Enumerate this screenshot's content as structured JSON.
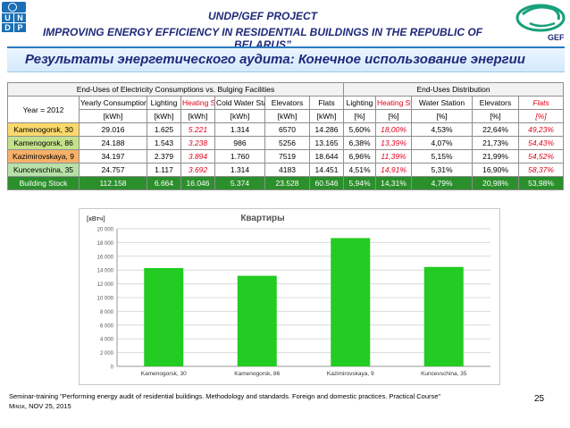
{
  "header": {
    "line1": "UNDP/GEF PROJECT",
    "line2": "IMPROVING ENERGY EFFICIENCY IN RESIDENTIAL BUILDINGS IN THE REPUBLIC OF BELARUS”",
    "subtitle": "Результаты энергетического аудита: Конечное использование энергии",
    "undp_letters": [
      "U",
      "N",
      "D",
      "P"
    ],
    "gef_label": "GEF"
  },
  "table": {
    "group_left": "End-Uses of Electricity Consumptions vs. Bulging Facilities",
    "group_right": "End-Uses Distribution",
    "year_label": "Year = 2012",
    "columns": [
      "Yearly Consumptions",
      "Lighting",
      "Heating System",
      "Cold Water Station",
      "Elevators",
      "Flats",
      "Lighting",
      "Heating System",
      "Water Station",
      "Elevators",
      "Flats"
    ],
    "units": [
      "[kWh]",
      "[kWh]",
      "[kWh]",
      "[kWh]",
      "[kWh]",
      "[kWh]",
      "[%]",
      "[%]",
      "[%]",
      "[%]",
      "[%]"
    ],
    "rows": [
      {
        "name": "Kamenogorsk, 30",
        "cells": [
          "29.016",
          "1.625",
          "5.221",
          "1.314",
          "6570",
          "14.286",
          "5,60%",
          "18,00%",
          "4,53%",
          "22,64%",
          "49,23%"
        ]
      },
      {
        "name": "Kamenogorsk, 86",
        "cells": [
          "24.188",
          "1.543",
          "3.238",
          "986",
          "5256",
          "13.165",
          "6,38%",
          "13,39%",
          "4,07%",
          "21,73%",
          "54,43%"
        ]
      },
      {
        "name": "Kazimirovskaya, 9",
        "cells": [
          "34.197",
          "2.379",
          "3.894",
          "1.760",
          "7519",
          "18.644",
          "6,96%",
          "11,39%",
          "5,15%",
          "21,99%",
          "54,52%"
        ]
      },
      {
        "name": "Kuncevschina, 35",
        "cells": [
          "24.757",
          "1.117",
          "3.692",
          "1.314",
          "4183",
          "14.451",
          "4,51%",
          "14,91%",
          "5,31%",
          "16,90%",
          "58,37%"
        ]
      }
    ],
    "stock": {
      "name": "Building Stock",
      "cells": [
        "112.158",
        "6.664",
        "16.046",
        "5.374",
        "23.528",
        "60.546",
        "5,94%",
        "14,31%",
        "4,79%",
        "20,98%",
        "53,98%"
      ]
    }
  },
  "chart_data": {
    "type": "bar",
    "title": "Квартиры",
    "ylabel": "[кВтч]",
    "xlabel": "",
    "categories": [
      "Kamenogorsk, 30",
      "Kamenogorsk, 86",
      "Kazimirovskaya, 9",
      "Kuncevschina, 35"
    ],
    "values": [
      14286,
      13165,
      18644,
      14451
    ],
    "ylim": [
      0,
      20000
    ],
    "yticks": [
      0,
      2000,
      4000,
      6000,
      8000,
      10000,
      12000,
      14000,
      16000,
      18000,
      20000
    ],
    "ytick_labels": [
      "0",
      "2 000",
      "4 000",
      "6 000",
      "8 000",
      "10 000",
      "12 000",
      "14 000",
      "16 000",
      "18 000",
      "20 000"
    ],
    "grid": true,
    "legend": "none",
    "bar_color": "#22cc22"
  },
  "footer": {
    "line1": "Seminar-training \"Performing energy audit of residential buildings. Methodology and standards. Foreign and domestic practices. Practical Course\"",
    "city": "Minsk",
    "date": ", NOV 25, 2015",
    "page": "25"
  }
}
